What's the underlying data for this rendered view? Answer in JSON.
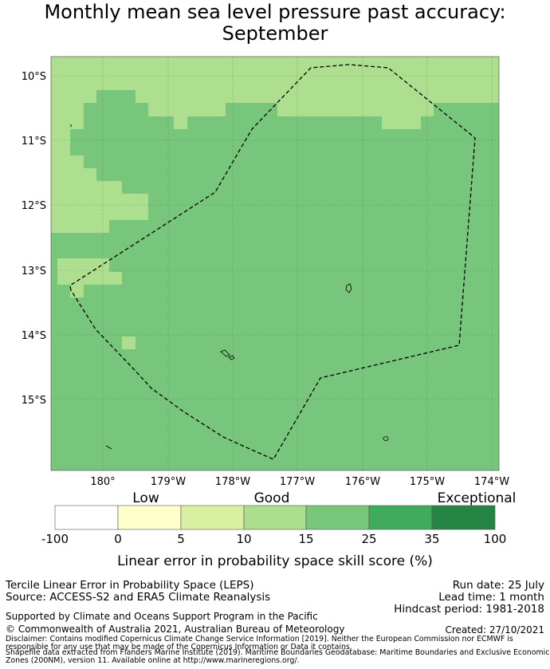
{
  "title_line1": "Monthly mean sea level pressure past accuracy:",
  "title_line2": "September",
  "map": {
    "lat_ticks": [
      "10°S",
      "11°S",
      "12°S",
      "13°S",
      "14°S",
      "15°S"
    ],
    "lon_ticks": [
      "180°",
      "179°W",
      "178°W",
      "177°W",
      "176°W",
      "175°W",
      "174°W"
    ],
    "lon_range": [
      179.2,
      185.9
    ],
    "lat_range": [
      -9.7,
      -16.1
    ],
    "colors": {
      "light_green": "#aedf8f",
      "mid_green": "#78c67b",
      "grid": "#2f6e35"
    }
  },
  "colorbar": {
    "categories": [
      "Low",
      "Good",
      "Exceptional"
    ],
    "tick_labels": [
      "-100",
      "0",
      "5",
      "10",
      "15",
      "25",
      "35",
      "100"
    ],
    "colors": [
      "#ffffff",
      "#ffffcc",
      "#d9f0a3",
      "#addd8e",
      "#78c679",
      "#41ab5d",
      "#238443"
    ],
    "label": "Linear error in probability space skill score (%)"
  },
  "footer": {
    "left_line1": "Tercile Linear Error in Probability Space (LEPS)",
    "left_line2": "Source: ACCESS-S2 and ERA5 Climate Reanalysis",
    "left_line3": "Supported by Climate and Oceans Support Program in the Pacific",
    "left_line4": "© Commonwealth of Australia 2021, Australian Bureau of Meteorology",
    "run_date": "Run date: 25 July",
    "lead_time": "Lead time: 1 month",
    "hindcast": "Hindcast period: 1981-2018",
    "created": "Created: 27/10/2021",
    "disclaimer1": "Disclaimer: Contains modified Copernicus Climate Change Service Information [2019]. Neither the European Commission nor ECMWF is",
    "disclaimer2": "responsible for any use that may be made of the Copernicus Information or Data it contains.",
    "disclaimer3": "Shapefile data extracted from Flanders Marine Institute (2019). Maritime Boundaries Geodatabase: Maritime Boundaries and Exclusive Economic",
    "disclaimer4": "Zones (200NM), version 11. Available online at http://www.marineregions.org/."
  }
}
